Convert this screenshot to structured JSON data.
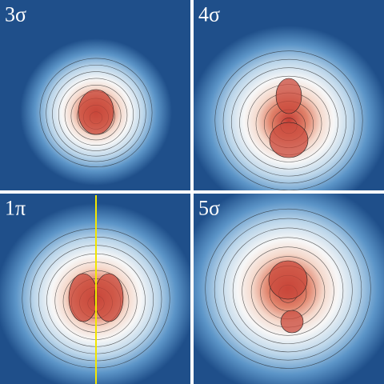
{
  "panels": [
    {
      "label": "3σ"
    },
    {
      "label": "4σ"
    },
    {
      "label": "1π"
    },
    {
      "label": "5σ"
    }
  ]
}
